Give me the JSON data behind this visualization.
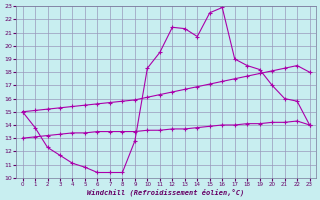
{
  "xlabel": "Windchill (Refroidissement éolien,°C)",
  "xlim": [
    -0.5,
    23.5
  ],
  "ylim": [
    10,
    23
  ],
  "xticks": [
    0,
    1,
    2,
    3,
    4,
    5,
    6,
    7,
    8,
    9,
    10,
    11,
    12,
    13,
    14,
    15,
    16,
    17,
    18,
    19,
    20,
    21,
    22,
    23
  ],
  "yticks": [
    10,
    11,
    12,
    13,
    14,
    15,
    16,
    17,
    18,
    19,
    20,
    21,
    22,
    23
  ],
  "line_color": "#aa00aa",
  "bg_color": "#c8eef0",
  "grid_color": "#9999bb",
  "line1": {
    "x": [
      0,
      1,
      2,
      3,
      4,
      5,
      6,
      7,
      8,
      9,
      10,
      11,
      12,
      13,
      14,
      15,
      16,
      17,
      18,
      19,
      20,
      21,
      22,
      23
    ],
    "y": [
      15.0,
      13.8,
      12.3,
      11.7,
      11.1,
      10.8,
      10.4,
      10.4,
      10.4,
      12.8,
      18.3,
      19.5,
      21.4,
      21.3,
      20.7,
      22.5,
      22.9,
      19.0,
      18.5,
      18.2,
      17.0,
      16.0,
      15.8,
      14.0
    ]
  },
  "line2": {
    "x": [
      0,
      1,
      2,
      3,
      4,
      5,
      6,
      7,
      8,
      9,
      10,
      11,
      12,
      13,
      14,
      15,
      16,
      17,
      18,
      19,
      20,
      21,
      22,
      23
    ],
    "y": [
      15.0,
      15.1,
      15.2,
      15.3,
      15.4,
      15.5,
      15.6,
      15.7,
      15.8,
      15.9,
      16.1,
      16.3,
      16.5,
      16.7,
      16.9,
      17.1,
      17.3,
      17.5,
      17.7,
      17.9,
      18.1,
      18.3,
      18.5,
      18.0
    ]
  },
  "line3": {
    "x": [
      0,
      1,
      2,
      3,
      4,
      5,
      6,
      7,
      8,
      9,
      10,
      11,
      12,
      13,
      14,
      15,
      16,
      17,
      18,
      19,
      20,
      21,
      22,
      23
    ],
    "y": [
      13.0,
      13.1,
      13.2,
      13.3,
      13.4,
      13.4,
      13.5,
      13.5,
      13.5,
      13.5,
      13.6,
      13.6,
      13.7,
      13.7,
      13.8,
      13.9,
      14.0,
      14.0,
      14.1,
      14.1,
      14.2,
      14.2,
      14.3,
      14.0
    ]
  }
}
